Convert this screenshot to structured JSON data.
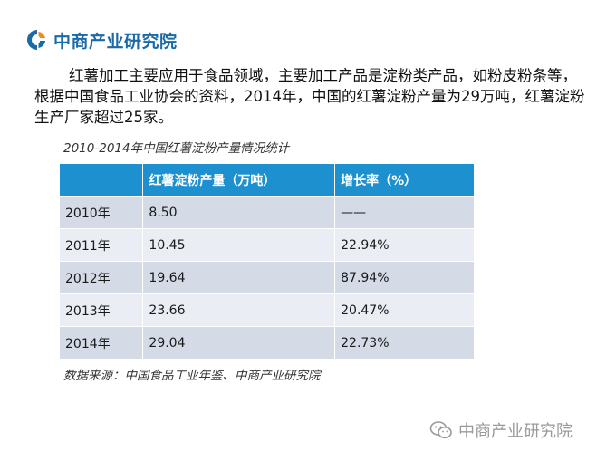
{
  "header": {
    "logo_text": "中商产业研究院",
    "logo_icon": "cc-logo-icon",
    "brand_color": "#1a6aa8"
  },
  "intro": {
    "text": "红薯加工主要应用于食品领域，主要加工产品是淀粉类产品，如粉皮粉条等，根据中国食品工业协会的资料，2014年，中国的红薯淀粉产量为29万吨，红薯淀粉生产厂家超过25家。"
  },
  "table": {
    "title": "2010-2014年中国红薯淀粉产量情况统计",
    "header_color": "#1d90cf",
    "columns": [
      "",
      "红薯淀粉产量（万吨）",
      "增长率（%）"
    ],
    "rows": [
      {
        "year": "2010年",
        "output": "8.50",
        "growth": "——"
      },
      {
        "year": "2011年",
        "output": "10.45",
        "growth": "22.94%"
      },
      {
        "year": "2012年",
        "output": "19.64",
        "growth": "87.94%"
      },
      {
        "year": "2013年",
        "output": "23.66",
        "growth": "20.47%"
      },
      {
        "year": "2014年",
        "output": "29.04",
        "growth": "22.73%"
      }
    ]
  },
  "source": {
    "text": "数据来源：中国食品工业年鉴、中商产业研究院"
  },
  "watermark": {
    "text": "中商产业研究院",
    "icon": "wechat-icon"
  }
}
